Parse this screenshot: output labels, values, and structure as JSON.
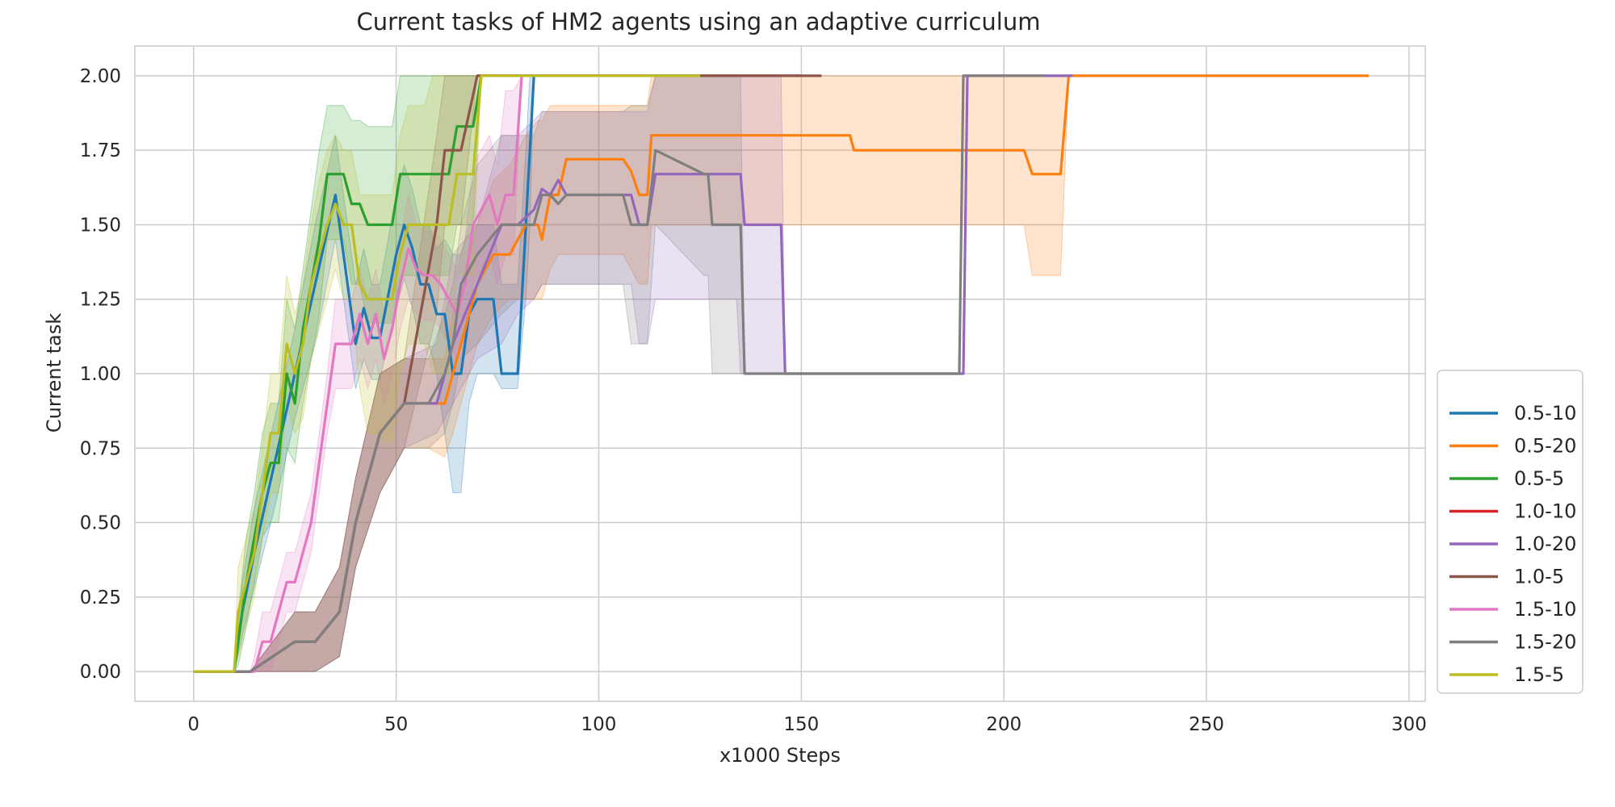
{
  "chart_data": {
    "type": "line",
    "title": "Current tasks of HM2 agents using an adaptive curriculum",
    "xlabel": "x1000 Steps",
    "ylabel": "Current task",
    "xlim": [
      -14.5,
      304
    ],
    "ylim": [
      -0.1,
      2.1
    ],
    "xticks": [
      0,
      50,
      100,
      150,
      200,
      250,
      300
    ],
    "xtick_labels": [
      "0",
      "50",
      "100",
      "150",
      "200",
      "250",
      "300"
    ],
    "yticks": [
      0,
      0.25,
      0.5,
      0.75,
      1.0,
      1.25,
      1.5,
      1.75,
      2.0
    ],
    "ytick_labels": [
      "0.00",
      "0.25",
      "0.50",
      "0.75",
      "1.00",
      "1.25",
      "1.50",
      "1.75",
      "2.00"
    ],
    "grid": true,
    "legend_position": "lower-right-outside",
    "series": [
      {
        "name": "0.5-10",
        "color": "#1f77b4",
        "x": [
          0,
          10,
          12,
          15,
          20,
          25,
          30,
          35,
          40,
          42,
          44,
          46,
          50,
          52,
          54,
          56,
          58,
          60,
          62,
          64,
          66,
          68,
          70,
          72,
          74,
          76,
          78,
          80,
          82,
          83,
          84,
          90
        ],
        "y": [
          0,
          0,
          0.2,
          0.4,
          0.7,
          1.0,
          1.3,
          1.6,
          1.1,
          1.22,
          1.12,
          1.12,
          1.4,
          1.5,
          1.42,
          1.3,
          1.3,
          1.2,
          1.2,
          1.0,
          1.0,
          1.2,
          1.25,
          1.25,
          1.25,
          1.0,
          1.0,
          1.0,
          1.5,
          1.75,
          2.0,
          2.0
        ],
        "lower": [
          0,
          0,
          0.12,
          0.28,
          0.55,
          0.85,
          1.1,
          1.45,
          0.95,
          1.05,
          0.98,
          0.98,
          1.22,
          1.32,
          1.22,
          1.1,
          1.1,
          1.0,
          0.8,
          0.6,
          0.6,
          0.9,
          1.0,
          1.0,
          1.0,
          0.95,
          0.95,
          0.95,
          1.25,
          1.5,
          2.0,
          2.0
        ],
        "upper": [
          0,
          0,
          0.3,
          0.55,
          0.85,
          1.15,
          1.5,
          1.8,
          1.3,
          1.42,
          1.3,
          1.3,
          1.6,
          1.7,
          1.62,
          1.5,
          1.5,
          1.42,
          1.45,
          1.4,
          1.4,
          1.5,
          1.5,
          1.5,
          1.5,
          1.3,
          1.3,
          1.3,
          1.75,
          2.0,
          2.0,
          2.0
        ]
      },
      {
        "name": "0.5-20",
        "color": "#ff7f0e",
        "x": [
          0,
          10,
          14,
          25,
          30,
          36,
          40,
          46,
          52,
          58,
          62,
          64,
          66,
          70,
          74,
          78,
          82,
          85,
          86,
          88,
          90,
          92,
          106,
          108,
          110,
          112,
          113,
          160,
          162,
          163,
          205,
          207,
          208,
          214,
          216,
          218,
          290
        ],
        "y": [
          0,
          0,
          0,
          0.1,
          0.1,
          0.2,
          0.5,
          0.8,
          0.9,
          0.9,
          0.9,
          1.0,
          1.1,
          1.3,
          1.4,
          1.4,
          1.5,
          1.5,
          1.45,
          1.6,
          1.6,
          1.72,
          1.72,
          1.68,
          1.6,
          1.6,
          1.8,
          1.8,
          1.8,
          1.75,
          1.75,
          1.67,
          1.67,
          1.67,
          2.0,
          2.0,
          2.0
        ],
        "lower": [
          0,
          0,
          0,
          0,
          0,
          0.05,
          0.35,
          0.6,
          0.75,
          0.75,
          0.72,
          0.8,
          0.9,
          1.1,
          1.2,
          1.25,
          1.25,
          1.25,
          1.25,
          1.35,
          1.4,
          1.4,
          1.4,
          1.35,
          1.3,
          1.3,
          1.5,
          1.5,
          1.5,
          1.5,
          1.5,
          1.33,
          1.33,
          1.33,
          2.0,
          2.0,
          2.0
        ],
        "upper": [
          0,
          0,
          0,
          0.2,
          0.2,
          0.35,
          0.65,
          1.0,
          1.05,
          1.05,
          1.05,
          1.2,
          1.3,
          1.5,
          1.65,
          1.7,
          1.8,
          1.85,
          1.85,
          1.9,
          1.9,
          1.9,
          1.9,
          1.9,
          1.9,
          1.9,
          2.0,
          2.0,
          2.0,
          2.0,
          2.0,
          2.0,
          2.0,
          2.0,
          2.0,
          2.0,
          2.0
        ]
      },
      {
        "name": "0.5-5",
        "color": "#2ca02c",
        "x": [
          0,
          10,
          11,
          13,
          15,
          17,
          19,
          21,
          23,
          25,
          27,
          29,
          31,
          33,
          35,
          37,
          39,
          41,
          43,
          45,
          47,
          49,
          51,
          53,
          55,
          57,
          59,
          61,
          63,
          65,
          67,
          69,
          71,
          75
        ],
        "y": [
          0,
          0,
          0.1,
          0.3,
          0.45,
          0.6,
          0.7,
          0.7,
          1.0,
          0.9,
          1.15,
          1.3,
          1.45,
          1.67,
          1.67,
          1.67,
          1.57,
          1.57,
          1.5,
          1.5,
          1.5,
          1.5,
          1.67,
          1.67,
          1.67,
          1.67,
          1.67,
          1.67,
          1.67,
          1.83,
          1.83,
          1.83,
          2.0,
          2.0
        ],
        "lower": [
          0,
          0,
          0.02,
          0.15,
          0.3,
          0.45,
          0.5,
          0.5,
          0.75,
          0.7,
          0.9,
          1.05,
          1.2,
          1.45,
          1.45,
          1.45,
          1.3,
          1.3,
          1.17,
          1.17,
          1.17,
          1.17,
          1.33,
          1.33,
          1.33,
          1.33,
          1.33,
          1.33,
          1.33,
          1.5,
          1.5,
          1.5,
          2.0,
          2.0
        ],
        "upper": [
          0,
          0,
          0.2,
          0.45,
          0.6,
          0.8,
          0.9,
          0.9,
          1.25,
          1.15,
          1.35,
          1.55,
          1.75,
          1.9,
          1.9,
          1.9,
          1.85,
          1.85,
          1.83,
          1.83,
          1.83,
          1.83,
          2.0,
          2.0,
          2.0,
          2.0,
          2.0,
          2.0,
          2.0,
          2.0,
          2.0,
          2.0,
          2.0,
          2.0
        ]
      },
      {
        "name": "1.0-10",
        "color": "#d62728",
        "x": [
          70,
          150
        ],
        "y": [
          2.0,
          2.0
        ],
        "lower": [
          2.0,
          2.0
        ],
        "upper": [
          2.0,
          2.0
        ]
      },
      {
        "name": "1.0-20",
        "color": "#9467bd",
        "x": [
          0,
          14,
          25,
          30,
          36,
          40,
          46,
          52,
          60,
          64,
          70,
          76,
          80,
          84,
          86,
          88,
          90,
          92,
          108,
          110,
          112,
          114,
          134,
          135,
          136,
          144,
          145,
          146,
          189,
          190,
          191,
          217
        ],
        "y": [
          0,
          0,
          0.1,
          0.1,
          0.2,
          0.5,
          0.8,
          0.9,
          0.9,
          1.1,
          1.3,
          1.5,
          1.5,
          1.55,
          1.62,
          1.6,
          1.65,
          1.6,
          1.6,
          1.5,
          1.5,
          1.67,
          1.67,
          1.67,
          1.5,
          1.5,
          1.5,
          1.0,
          1.0,
          1.0,
          2.0,
          2.0
        ],
        "lower": [
          0,
          0,
          0,
          0,
          0.05,
          0.35,
          0.6,
          0.75,
          0.8,
          0.9,
          1.05,
          1.1,
          1.2,
          1.25,
          1.3,
          1.3,
          1.3,
          1.3,
          1.3,
          1.1,
          1.1,
          1.25,
          1.25,
          1.0,
          1.0,
          1.0,
          1.0,
          1.0,
          1.0,
          1.0,
          2.0,
          2.0
        ],
        "upper": [
          0,
          0,
          0.2,
          0.2,
          0.35,
          0.65,
          1.0,
          1.05,
          1.1,
          1.4,
          1.5,
          1.8,
          1.8,
          1.85,
          1.88,
          1.88,
          1.88,
          1.88,
          1.88,
          1.88,
          1.88,
          2.0,
          2.0,
          2.0,
          2.0,
          2.0,
          2.0,
          1.0,
          1.0,
          1.0,
          2.0,
          2.0
        ]
      },
      {
        "name": "1.0-5",
        "color": "#8c564b",
        "x": [
          0,
          14,
          25,
          30,
          36,
          40,
          46,
          52,
          60,
          62,
          64,
          66,
          70,
          155
        ],
        "y": [
          0,
          0,
          0.1,
          0.1,
          0.2,
          0.5,
          0.8,
          0.9,
          1.5,
          1.75,
          1.75,
          1.75,
          2.0,
          2.0
        ],
        "lower": [
          0,
          0,
          0,
          0,
          0.05,
          0.35,
          0.6,
          0.75,
          1.2,
          1.5,
          1.5,
          1.5,
          2.0,
          2.0
        ],
        "upper": [
          0,
          0,
          0.2,
          0.2,
          0.35,
          0.65,
          1.0,
          1.05,
          1.8,
          2.0,
          2.0,
          2.0,
          2.0,
          2.0
        ]
      },
      {
        "name": "1.5-10",
        "color": "#e377c2",
        "x": [
          0,
          14,
          15,
          17,
          19,
          21,
          23,
          25,
          27,
          29,
          31,
          33,
          35,
          37,
          39,
          41,
          43,
          45,
          47,
          49,
          51,
          53,
          55,
          57,
          59,
          61,
          63,
          65,
          67,
          69,
          71,
          73,
          75,
          77,
          79,
          81,
          125
        ],
        "y": [
          0,
          0,
          0.0,
          0.1,
          0.1,
          0.2,
          0.3,
          0.3,
          0.4,
          0.5,
          0.7,
          0.9,
          1.1,
          1.1,
          1.1,
          1.2,
          1.1,
          1.2,
          1.05,
          1.15,
          1.3,
          1.42,
          1.35,
          1.33,
          1.33,
          1.3,
          1.25,
          1.2,
          1.3,
          1.5,
          1.55,
          1.6,
          1.5,
          1.6,
          1.6,
          2.0,
          2.0
        ],
        "lower": [
          0,
          0,
          0,
          0,
          0,
          0.1,
          0.2,
          0.2,
          0.3,
          0.4,
          0.6,
          0.8,
          0.95,
          0.95,
          0.95,
          1.05,
          0.95,
          1.05,
          0.9,
          1.0,
          1.15,
          1.25,
          1.2,
          1.18,
          1.18,
          1.15,
          1.1,
          1.05,
          1.15,
          1.3,
          1.35,
          1.4,
          1.3,
          1.4,
          1.4,
          2.0,
          2.0
        ],
        "upper": [
          0,
          0,
          0.05,
          0.2,
          0.2,
          0.3,
          0.4,
          0.4,
          0.5,
          0.6,
          0.8,
          1.0,
          1.25,
          1.25,
          1.25,
          1.35,
          1.25,
          1.35,
          1.2,
          1.3,
          1.45,
          1.6,
          1.5,
          1.48,
          1.48,
          1.45,
          1.4,
          1.35,
          1.45,
          1.7,
          1.75,
          1.8,
          1.7,
          1.95,
          1.95,
          2.0,
          2.0
        ]
      },
      {
        "name": "1.5-20",
        "color": "#7f7f7f",
        "x": [
          0,
          14,
          25,
          30,
          36,
          40,
          46,
          52,
          58,
          62,
          64,
          66,
          70,
          76,
          80,
          84,
          86,
          88,
          90,
          92,
          106,
          108,
          110,
          112,
          114,
          126,
          127,
          128,
          135,
          136,
          137,
          188,
          189,
          190,
          210
        ],
        "y": [
          0,
          0,
          0.1,
          0.1,
          0.2,
          0.5,
          0.8,
          0.9,
          0.9,
          1.0,
          1.1,
          1.3,
          1.4,
          1.5,
          1.5,
          1.5,
          1.6,
          1.6,
          1.57,
          1.6,
          1.6,
          1.5,
          1.5,
          1.5,
          1.75,
          1.67,
          1.67,
          1.5,
          1.5,
          1.0,
          1.0,
          1.0,
          1.0,
          2.0,
          2.0
        ],
        "lower": [
          0,
          0,
          0,
          0,
          0.05,
          0.35,
          0.6,
          0.75,
          0.75,
          0.8,
          0.9,
          1.05,
          1.1,
          1.2,
          1.25,
          1.25,
          1.3,
          1.3,
          1.3,
          1.3,
          1.3,
          1.1,
          1.1,
          1.1,
          1.5,
          1.33,
          1.33,
          1.0,
          1.0,
          1.0,
          1.0,
          1.0,
          1.0,
          2.0,
          2.0
        ],
        "upper": [
          0,
          0,
          0.2,
          0.2,
          0.35,
          0.65,
          1.0,
          1.05,
          1.05,
          1.2,
          1.3,
          1.5,
          1.7,
          1.8,
          1.8,
          1.8,
          1.88,
          1.88,
          1.88,
          1.88,
          1.88,
          1.9,
          1.9,
          1.9,
          2.0,
          2.0,
          2.0,
          2.0,
          2.0,
          1.0,
          1.0,
          1.0,
          1.0,
          2.0,
          2.0
        ]
      },
      {
        "name": "1.5-5",
        "color": "#bcbd22",
        "x": [
          0,
          10,
          11,
          13,
          15,
          17,
          19,
          21,
          23,
          25,
          27,
          29,
          31,
          33,
          35,
          37,
          39,
          41,
          43,
          45,
          47,
          49,
          51,
          53,
          55,
          57,
          59,
          61,
          63,
          65,
          67,
          69,
          71,
          125
        ],
        "y": [
          0,
          0,
          0.2,
          0.3,
          0.4,
          0.6,
          0.8,
          0.8,
          1.1,
          1.0,
          1.1,
          1.3,
          1.4,
          1.5,
          1.57,
          1.5,
          1.5,
          1.3,
          1.25,
          1.25,
          1.25,
          1.25,
          1.4,
          1.5,
          1.5,
          1.5,
          1.5,
          1.5,
          1.5,
          1.67,
          1.67,
          1.67,
          2.0,
          2.0
        ],
        "lower": [
          0,
          0,
          0.05,
          0.15,
          0.25,
          0.45,
          0.6,
          0.6,
          0.9,
          0.8,
          0.85,
          1.05,
          1.15,
          1.25,
          1.35,
          1.25,
          1.25,
          0.95,
          0.8,
          0.8,
          0.77,
          0.77,
          1.0,
          1.1,
          1.1,
          1.1,
          1.0,
          1.0,
          1.0,
          1.33,
          1.33,
          1.33,
          2.0,
          2.0
        ],
        "upper": [
          0,
          0,
          0.35,
          0.45,
          0.55,
          0.75,
          1.0,
          1.0,
          1.33,
          1.2,
          1.3,
          1.5,
          1.65,
          1.75,
          1.8,
          1.75,
          1.75,
          1.6,
          1.6,
          1.6,
          1.6,
          1.6,
          1.8,
          1.9,
          1.9,
          1.9,
          2.0,
          2.0,
          2.0,
          2.0,
          2.0,
          2.0,
          2.0,
          2.0
        ]
      }
    ]
  }
}
